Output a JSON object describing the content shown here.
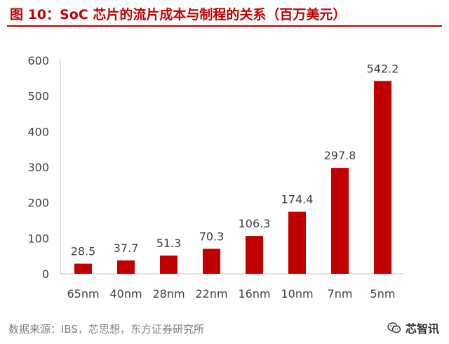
{
  "figure": {
    "title": "图 10：SoC 芯片的流片成本与制程的关系（百万美元）",
    "source": "数据来源：IBS，芯思想，东方证券研究所",
    "watermark": "芯智讯",
    "watermark_icon": "wechat-icon"
  },
  "colors": {
    "bar": "#c00000",
    "title": "#c00000",
    "axis": "#bfbfbf",
    "text": "#404040",
    "source": "#7f7f7f"
  },
  "chart_data": {
    "type": "bar",
    "title": "图 10：SoC 芯片的流片成本与制程的关系（百万美元）",
    "categories": [
      "65nm",
      "40nm",
      "28nm",
      "22nm",
      "16nm",
      "10nm",
      "7nm",
      "5nm"
    ],
    "values": [
      28.5,
      37.7,
      51.3,
      70.3,
      106.3,
      174.4,
      297.8,
      542.2
    ],
    "value_labels": [
      "28.5",
      "37.7",
      "51.3",
      "70.3",
      "106.3",
      "174.4",
      "297.8",
      "542.2"
    ],
    "y_ticks": [
      "0",
      "100",
      "200",
      "300",
      "400",
      "500",
      "600"
    ],
    "ylim": [
      0,
      600
    ],
    "xlabel": "",
    "ylabel": "",
    "grid": false,
    "legend": "none"
  }
}
